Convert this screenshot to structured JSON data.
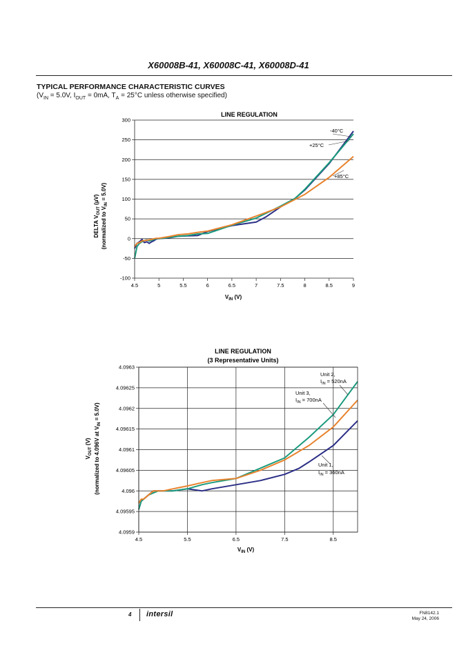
{
  "header": {
    "title": "X60008B-41, X60008C-41, X60008D-41"
  },
  "section": {
    "title": "TYPICAL PERFORMANCE CHARACTERISTIC CURVES",
    "conditions": {
      "vin": "5.0V",
      "iout": "0mA",
      "ta": "25°C",
      "suffix": "unless otherwise specified"
    }
  },
  "colors": {
    "navy": "#2b2f86",
    "teal": "#1a9a7c",
    "orange": "#e8832e"
  },
  "chart_data": [
    {
      "type": "line",
      "title": "LINE REGULATION",
      "xlabel": "VIN (V)",
      "ylabel": "DELTA VOUT (µV)",
      "ylabel2": "(normalized to VIN = 5.0V)",
      "xlim": [
        4.5,
        9
      ],
      "ylim": [
        -100,
        300
      ],
      "xticks": [
        "4.5",
        "5",
        "5.5",
        "6",
        "6.5",
        "7",
        "7.5",
        "8",
        "8.5",
        "9"
      ],
      "yticks": [
        "300",
        "250",
        "200",
        "150",
        "100",
        "50",
        "0",
        "-50",
        "-100"
      ],
      "series": [
        {
          "name": "-40°C",
          "color": "#2b2f86",
          "x": [
            4.5,
            4.55,
            4.6,
            4.65,
            4.7,
            4.75,
            4.8,
            4.85,
            4.9,
            4.95,
            5,
            5.2,
            5.4,
            5.6,
            5.8,
            6,
            6.5,
            7,
            7.2,
            7.5,
            7.8,
            8,
            8.5,
            9
          ],
          "y": [
            -25,
            -12,
            -8,
            -2,
            -10,
            -8,
            -12,
            -8,
            -5,
            -1,
            0,
            2,
            6,
            7,
            8,
            18,
            33,
            42,
            55,
            80,
            102,
            123,
            190,
            272
          ]
        },
        {
          "name": "+25°C",
          "color": "#1a9a7c",
          "x": [
            4.5,
            4.55,
            4.6,
            4.65,
            4.7,
            4.75,
            4.8,
            4.85,
            4.9,
            4.95,
            5,
            5.2,
            5.4,
            5.6,
            5.8,
            6,
            6.5,
            7,
            7.5,
            7.8,
            8,
            8.5,
            9
          ],
          "y": [
            -50,
            -20,
            -12,
            -8,
            -5,
            -3,
            -6,
            -4,
            -2,
            0,
            0,
            3,
            6,
            8,
            12,
            13,
            34,
            52,
            82,
            102,
            125,
            192,
            265
          ]
        },
        {
          "name": "+85°C",
          "color": "#e8832e",
          "x": [
            4.5,
            4.55,
            4.6,
            4.65,
            4.7,
            4.75,
            4.8,
            4.85,
            4.9,
            4.95,
            5,
            5.2,
            5.4,
            5.6,
            5.8,
            6,
            6.5,
            7,
            7.5,
            8,
            8.5,
            9
          ],
          "y": [
            -20,
            -12,
            -10,
            -6,
            -5,
            -4,
            -3,
            -2,
            0,
            1,
            1,
            5,
            10,
            12,
            16,
            19,
            35,
            57,
            80,
            112,
            155,
            208
          ]
        }
      ],
      "annotations": [
        "-40°C",
        "+25°C",
        "+85°C"
      ]
    },
    {
      "type": "line",
      "title": "LINE REGULATION",
      "subtitle": "(3 Representative Units)",
      "xlabel": "VIN (V)",
      "ylabel": "VOUT (V)",
      "ylabel2": "(normalized to 4.096V at VIN = 5.0V)",
      "xlim": [
        4.5,
        9
      ],
      "ylim": [
        4.0959,
        4.0963
      ],
      "xticks": [
        "4.5",
        "5.5",
        "6.5",
        "7.5",
        "8.5"
      ],
      "yticks": [
        "4.0963",
        "4.09625",
        "4.0962",
        "4.09615",
        "4.0961",
        "4.09605",
        "4.096",
        "4.09595",
        "4.0959"
      ],
      "series": [
        {
          "name": "Unit 1, IIN = 360nA",
          "color": "#2b2f86",
          "x": [
            4.5,
            4.55,
            4.6,
            4.7,
            4.8,
            4.9,
            5,
            5.2,
            5.5,
            5.8,
            6,
            6.5,
            7,
            7.5,
            7.8,
            8,
            8.5,
            9
          ],
          "y": [
            4.095955,
            4.095975,
            4.09598,
            4.09599,
            4.096,
            4.096,
            4.096,
            4.096,
            4.096005,
            4.096,
            4.096005,
            4.096015,
            4.096025,
            4.09604,
            4.096055,
            4.09607,
            4.09611,
            4.09617
          ]
        },
        {
          "name": "Unit 2, IIN = 520nA",
          "color": "#1a9a7c",
          "x": [
            4.5,
            4.55,
            4.6,
            4.7,
            4.8,
            4.9,
            5,
            5.2,
            5.5,
            5.8,
            6,
            6.5,
            7,
            7.5,
            8,
            8.5,
            9
          ],
          "y": [
            4.095955,
            4.095975,
            4.09598,
            4.09599,
            4.095995,
            4.096,
            4.096,
            4.096,
            4.096005,
            4.096015,
            4.09602,
            4.09603,
            4.096055,
            4.09608,
            4.09613,
            4.096185,
            4.096265
          ]
        },
        {
          "name": "Unit 3, IIN = 700nA",
          "color": "#e8832e",
          "x": [
            4.5,
            4.55,
            4.6,
            4.7,
            4.8,
            4.9,
            5,
            5.2,
            5.5,
            5.8,
            6,
            6.5,
            7,
            7.5,
            8,
            8.5,
            9
          ],
          "y": [
            4.09597,
            4.09598,
            4.09598,
            4.09599,
            4.096,
            4.096,
            4.096,
            4.096005,
            4.096012,
            4.09602,
            4.096025,
            4.09603,
            4.09605,
            4.096075,
            4.09611,
            4.096155,
            4.09622
          ]
        }
      ],
      "annotations": [
        {
          "line1": "Unit 2,",
          "line2": "IIN = 520nA"
        },
        {
          "line1": "Unit 3,",
          "line2": "IIN = 700nA"
        },
        {
          "line1": "Unit 1,",
          "line2": "IIN = 360nA"
        }
      ]
    }
  ],
  "footer": {
    "page": "4",
    "logo": "intersil",
    "doc": "FN8142.1",
    "date": "May 24, 2006"
  }
}
